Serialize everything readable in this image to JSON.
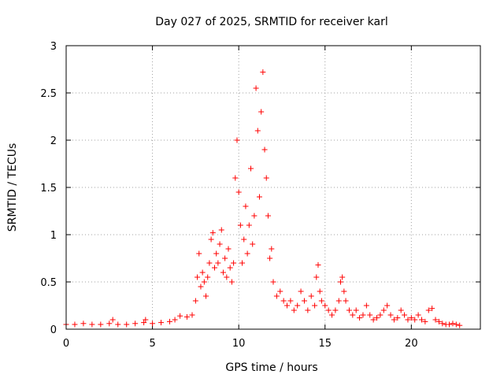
{
  "chart_data": {
    "type": "scatter",
    "title": "Day 027 of 2025, SRMTID for receiver karl",
    "xlabel": "GPS time / hours",
    "ylabel": "SRMTID / TECUs",
    "xlim": [
      0,
      24
    ],
    "ylim": [
      0,
      3
    ],
    "xticks": [
      0,
      5,
      10,
      15,
      20
    ],
    "xtick_labels": [
      "0",
      "5",
      "10",
      "15",
      "20"
    ],
    "yticks": [
      0,
      0.5,
      1,
      1.5,
      2,
      2.5,
      3
    ],
    "ytick_labels": [
      "0",
      "0.5",
      "1",
      "1.5",
      "2",
      "2.5",
      "3"
    ],
    "grid": true,
    "marker": "+",
    "series": [
      {
        "name": "SRMTID",
        "color": "#ff0000",
        "x": [
          0.0,
          0.5,
          1.0,
          1.5,
          2.0,
          2.5,
          2.7,
          3.0,
          3.5,
          4.0,
          4.5,
          4.6,
          5.0,
          5.5,
          6.0,
          6.3,
          6.6,
          7.0,
          7.3,
          7.5,
          7.6,
          7.7,
          7.8,
          7.9,
          8.0,
          8.1,
          8.2,
          8.3,
          8.4,
          8.5,
          8.6,
          8.7,
          8.8,
          8.9,
          9.0,
          9.1,
          9.2,
          9.3,
          9.4,
          9.5,
          9.6,
          9.7,
          9.8,
          9.9,
          10.0,
          10.1,
          10.2,
          10.3,
          10.4,
          10.5,
          10.6,
          10.7,
          10.8,
          10.9,
          11.0,
          11.1,
          11.2,
          11.3,
          11.4,
          11.5,
          11.6,
          11.7,
          11.8,
          11.9,
          12.0,
          12.2,
          12.4,
          12.6,
          12.8,
          13.0,
          13.2,
          13.4,
          13.6,
          13.8,
          14.0,
          14.2,
          14.4,
          14.5,
          14.6,
          14.7,
          14.8,
          15.0,
          15.2,
          15.4,
          15.6,
          15.8,
          15.9,
          16.0,
          16.1,
          16.2,
          16.4,
          16.6,
          16.8,
          17.0,
          17.2,
          17.4,
          17.6,
          17.8,
          18.0,
          18.2,
          18.4,
          18.6,
          18.8,
          19.0,
          19.2,
          19.4,
          19.6,
          19.8,
          20.0,
          20.2,
          20.4,
          20.6,
          20.8,
          21.0,
          21.2,
          21.4,
          21.6,
          21.8,
          22.0,
          22.2,
          22.4,
          22.6,
          22.8
        ],
        "y": [
          0.05,
          0.05,
          0.06,
          0.05,
          0.05,
          0.06,
          0.1,
          0.05,
          0.05,
          0.06,
          0.07,
          0.1,
          0.06,
          0.07,
          0.08,
          0.1,
          0.14,
          0.13,
          0.15,
          0.3,
          0.55,
          0.8,
          0.45,
          0.6,
          0.5,
          0.35,
          0.55,
          0.7,
          0.95,
          1.02,
          0.65,
          0.8,
          0.7,
          0.9,
          1.05,
          0.6,
          0.75,
          0.55,
          0.85,
          0.65,
          0.5,
          0.7,
          1.6,
          2.0,
          1.45,
          1.1,
          0.7,
          0.95,
          1.3,
          0.8,
          1.1,
          1.7,
          0.9,
          1.2,
          2.55,
          2.1,
          1.4,
          2.3,
          2.72,
          1.9,
          1.6,
          1.2,
          0.75,
          0.85,
          0.5,
          0.35,
          0.4,
          0.3,
          0.25,
          0.3,
          0.2,
          0.25,
          0.4,
          0.3,
          0.2,
          0.35,
          0.25,
          0.55,
          0.68,
          0.4,
          0.3,
          0.25,
          0.2,
          0.15,
          0.2,
          0.3,
          0.5,
          0.55,
          0.4,
          0.3,
          0.2,
          0.15,
          0.2,
          0.12,
          0.15,
          0.25,
          0.15,
          0.1,
          0.12,
          0.15,
          0.2,
          0.25,
          0.15,
          0.1,
          0.12,
          0.2,
          0.15,
          0.1,
          0.12,
          0.1,
          0.15,
          0.1,
          0.08,
          0.2,
          0.22,
          0.1,
          0.08,
          0.06,
          0.05,
          0.05,
          0.06,
          0.05,
          0.04
        ]
      }
    ]
  }
}
